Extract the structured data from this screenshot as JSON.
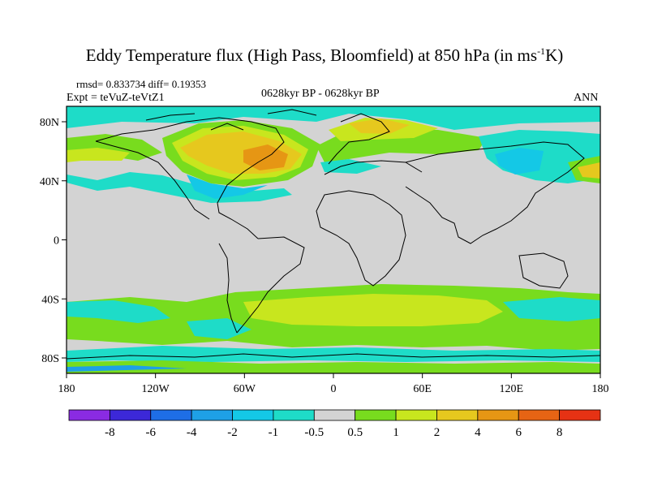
{
  "title": {
    "main": "Eddy Temperature flux (High Pass, Bloomfield) at 850 hPa (in ms",
    "sup": "-1",
    "tail": "K)"
  },
  "stats": {
    "text": "rmsd= 0.833734  diff= 0.19353"
  },
  "expt": {
    "text": "Expt = teVuZ-teVtZ1"
  },
  "period": {
    "text": "0628kyr BP - 0628kyr BP"
  },
  "season": {
    "text": "ANN"
  },
  "axes": {
    "lat_labels": [
      "80N",
      "40N",
      "0",
      "40S",
      "80S"
    ],
    "lon_labels": [
      "180",
      "120W",
      "60W",
      "0",
      "60E",
      "120E",
      "180"
    ]
  },
  "colorbar": {
    "labels": [
      "-8",
      "-6",
      "-4",
      "-2",
      "-1",
      "-0.5",
      "0.5",
      "1",
      "2",
      "4",
      "6",
      "8"
    ],
    "colors": [
      "#8a2be2",
      "#3c28d8",
      "#1e6ee6",
      "#1ea0e6",
      "#14c8e6",
      "#1edcc8",
      "#d3d3d3",
      "#78dc1e",
      "#c8e61e",
      "#e6c81e",
      "#e69614",
      "#e66414",
      "#e63214"
    ]
  },
  "map": {
    "background_color": "#d3d3d3",
    "palette": {
      "cyan": "#1edcc8",
      "lightblue": "#14c8e6",
      "blue": "#1ea0e6",
      "green": "#78dc1e",
      "yellow": "#c8e61e",
      "orange": "#e6c81e",
      "darkorange": "#e69614",
      "coast": "#000000"
    }
  }
}
